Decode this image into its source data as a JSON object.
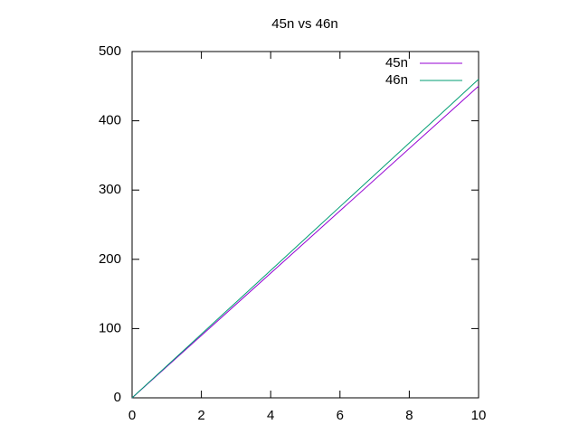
{
  "chart_data": {
    "type": "line",
    "title": "45n vs 46n",
    "x": [
      0,
      10
    ],
    "series": [
      {
        "name": "45n",
        "color": "#9400d3",
        "values": [
          0,
          450
        ]
      },
      {
        "name": "46n",
        "color": "#009e73",
        "values": [
          0,
          460
        ]
      }
    ],
    "xlim": [
      0,
      10
    ],
    "xticks": [
      0,
      2,
      4,
      6,
      8,
      10
    ],
    "ylim": [
      0,
      500
    ],
    "yticks": [
      0,
      100,
      200,
      300,
      400,
      500
    ],
    "legend": "top-right"
  }
}
